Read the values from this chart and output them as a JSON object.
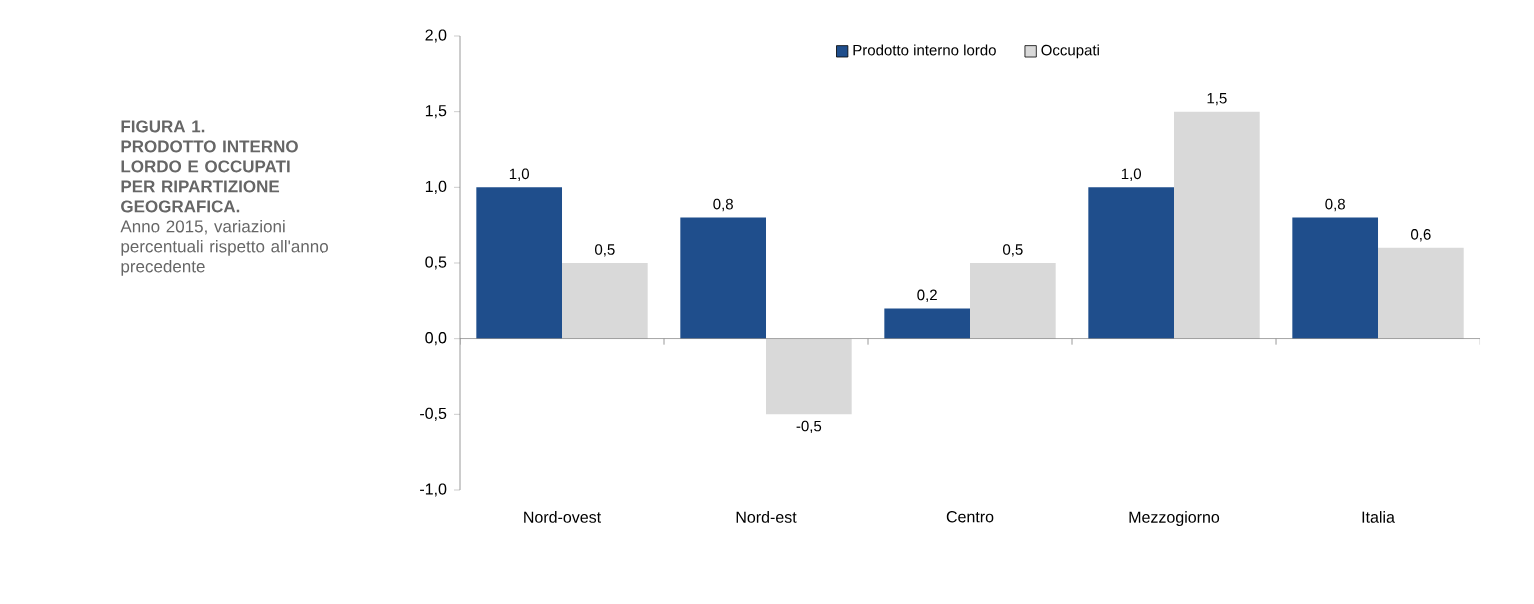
{
  "chart_data": {
    "type": "bar",
    "title": "FIGURA 1.\nPRODOTTO INTERNO LORDO E OCCUPATI PER RIPARTIZIONE GEOGRAFICA.",
    "subtitle": "Anno 2015, variazioni percentuali rispetto all'anno precedente",
    "categories": [
      "Nord-ovest",
      "Nord-est",
      "Centro",
      "Mezzogiorno",
      "Italia"
    ],
    "series": [
      {
        "name": "Prodotto interno lordo",
        "color": "#1f4e8c",
        "values": [
          1.0,
          0.8,
          0.2,
          1.0,
          0.8
        ],
        "value_labels": [
          "1,0",
          "0,8",
          "0,2",
          "1,0",
          "0,8"
        ]
      },
      {
        "name": "Occupati",
        "color": "#d9d9d9",
        "values": [
          0.5,
          -0.5,
          0.5,
          1.5,
          0.6
        ],
        "value_labels": [
          "0,5",
          "-0,5",
          "0,5",
          "1,5",
          "0,6"
        ]
      }
    ],
    "ylim": [
      -1.0,
      2.0
    ],
    "yticks": [
      {
        "value": -1.0,
        "label": "-1,0"
      },
      {
        "value": -0.5,
        "label": "-0,5"
      },
      {
        "value": 0.0,
        "label": "0,0"
      },
      {
        "value": 0.5,
        "label": "0,5"
      },
      {
        "value": 1.0,
        "label": "1,0"
      },
      {
        "value": 1.5,
        "label": "1,5"
      },
      {
        "value": 2.0,
        "label": "2,0"
      }
    ],
    "legend": "top"
  }
}
